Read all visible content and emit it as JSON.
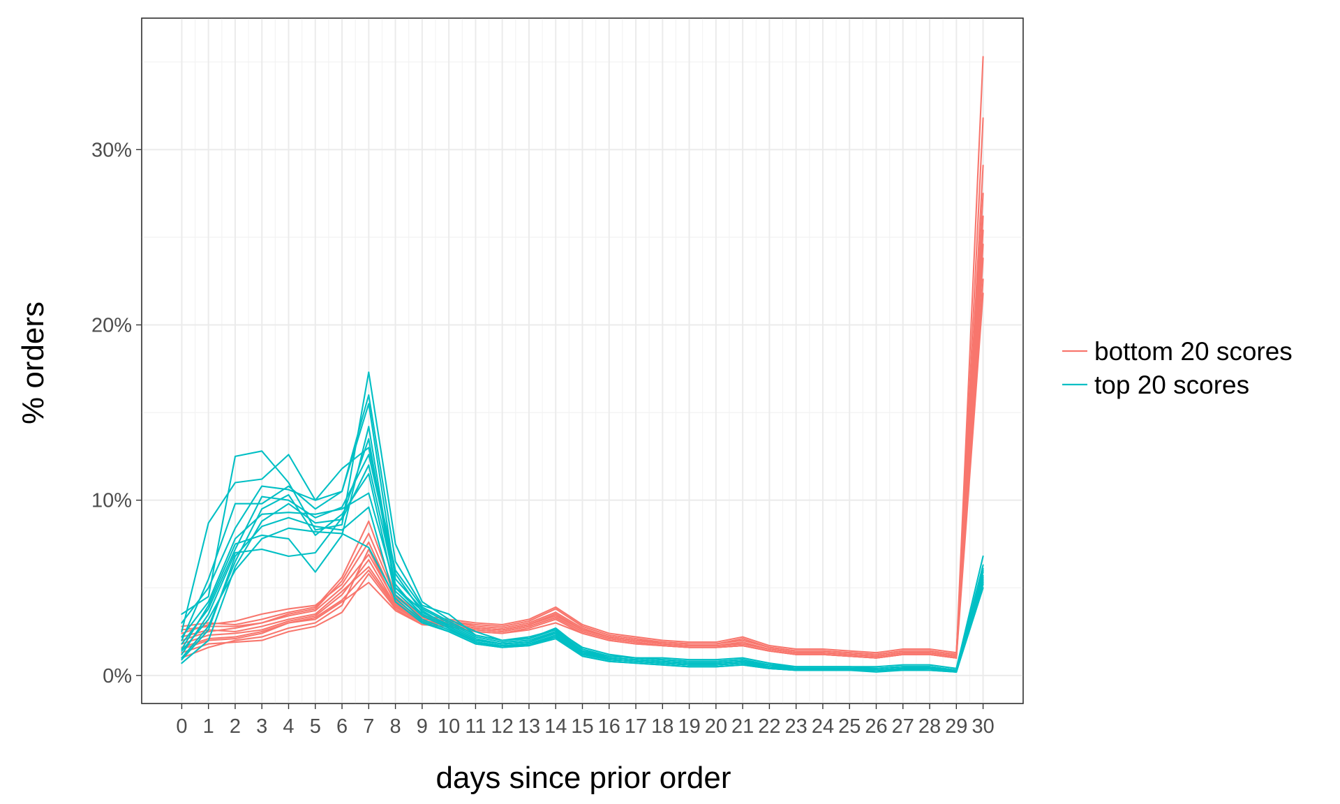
{
  "chart_data": {
    "type": "line",
    "title": "",
    "xlabel": "days since prior order",
    "ylabel": "% orders",
    "x": [
      0,
      1,
      2,
      3,
      4,
      5,
      6,
      7,
      8,
      9,
      10,
      11,
      12,
      13,
      14,
      15,
      16,
      17,
      18,
      19,
      20,
      21,
      22,
      23,
      24,
      25,
      26,
      27,
      28,
      29,
      30
    ],
    "x_tick_labels": [
      "0",
      "1",
      "2",
      "3",
      "4",
      "5",
      "6",
      "7",
      "8",
      "9",
      "10",
      "11",
      "12",
      "13",
      "14",
      "15",
      "16",
      "17",
      "18",
      "19",
      "20",
      "21",
      "22",
      "23",
      "24",
      "25",
      "26",
      "27",
      "28",
      "29",
      "30"
    ],
    "xlim": [
      -1.5,
      31.5
    ],
    "ylim": [
      -1.6,
      37.5
    ],
    "y_ticks": [
      0,
      10,
      20,
      30
    ],
    "y_tick_labels": [
      "0%",
      "10%",
      "20%",
      "30%"
    ],
    "grid": true,
    "legend_position": "right",
    "groups": [
      {
        "name": "bottom 20 scores",
        "color": "#F8766D",
        "series": [
          {
            "values": [
              2.2,
              2.6,
              2.5,
              2.8,
              3.2,
              3.5,
              4.8,
              6.2,
              4.0,
              3.0,
              3.0,
              2.7,
              2.6,
              2.9,
              3.4,
              2.6,
              2.2,
              2.0,
              1.8,
              1.7,
              1.7,
              1.8,
              1.5,
              1.3,
              1.3,
              1.2,
              1.1,
              1.3,
              1.3,
              1.1,
              35.3
            ]
          },
          {
            "values": [
              1.5,
              2.0,
              2.1,
              2.4,
              3.0,
              3.2,
              4.2,
              5.3,
              3.7,
              2.9,
              2.8,
              2.5,
              2.4,
              2.6,
              3.0,
              2.4,
              2.0,
              1.8,
              1.7,
              1.6,
              1.6,
              1.7,
              1.4,
              1.2,
              1.2,
              1.1,
              1.0,
              1.2,
              1.2,
              1.0,
              31.8
            ]
          },
          {
            "values": [
              2.8,
              3.0,
              2.9,
              3.2,
              3.6,
              3.9,
              5.6,
              8.8,
              4.6,
              3.4,
              3.2,
              3.0,
              2.9,
              3.2,
              3.9,
              2.9,
              2.4,
              2.2,
              2.0,
              1.9,
              1.9,
              2.2,
              1.7,
              1.5,
              1.5,
              1.4,
              1.3,
              1.5,
              1.5,
              1.3,
              27.5
            ]
          },
          {
            "values": [
              1.0,
              1.6,
              2.0,
              2.2,
              2.7,
              3.0,
              4.0,
              7.2,
              4.1,
              3.0,
              2.9,
              2.6,
              2.5,
              2.8,
              3.3,
              2.5,
              2.1,
              1.9,
              1.7,
              1.6,
              1.6,
              1.7,
              1.4,
              1.2,
              1.2,
              1.1,
              1.0,
              1.2,
              1.2,
              1.0,
              25.4
            ]
          },
          {
            "values": [
              2.4,
              2.9,
              3.1,
              3.5,
              3.8,
              4.0,
              5.2,
              7.6,
              4.3,
              3.2,
              3.1,
              2.8,
              2.7,
              3.0,
              3.6,
              2.7,
              2.2,
              2.0,
              1.9,
              1.8,
              1.8,
              2.0,
              1.6,
              1.4,
              1.4,
              1.3,
              1.2,
              1.4,
              1.4,
              1.2,
              23.8
            ]
          },
          {
            "values": [
              1.8,
              2.3,
              2.4,
              2.6,
              3.1,
              3.4,
              4.6,
              6.6,
              4.0,
              3.1,
              3.0,
              2.7,
              2.6,
              2.9,
              3.5,
              2.6,
              2.2,
              2.0,
              1.8,
              1.7,
              1.7,
              1.8,
              1.5,
              1.3,
              1.3,
              1.2,
              1.1,
              1.3,
              1.3,
              1.1,
              22.6
            ]
          },
          {
            "values": [
              1.3,
              1.8,
              1.9,
              2.0,
              2.5,
              2.8,
              3.6,
              5.8,
              3.8,
              2.9,
              2.8,
              2.5,
              2.4,
              2.7,
              3.2,
              2.4,
              2.0,
              1.8,
              1.7,
              1.6,
              1.6,
              1.7,
              1.4,
              1.2,
              1.2,
              1.1,
              1.0,
              1.2,
              1.2,
              1.0,
              21.8
            ]
          },
          {
            "values": [
              2.0,
              2.5,
              2.7,
              3.0,
              3.4,
              3.7,
              5.0,
              6.9,
              4.2,
              3.1,
              3.0,
              2.7,
              2.6,
              2.9,
              3.5,
              2.6,
              2.2,
              2.0,
              1.8,
              1.7,
              1.7,
              1.9,
              1.5,
              1.3,
              1.3,
              1.2,
              1.1,
              1.3,
              1.3,
              1.1,
              24.6
            ]
          },
          {
            "values": [
              1.6,
              2.1,
              2.2,
              2.5,
              3.0,
              3.3,
              4.3,
              6.0,
              3.9,
              3.0,
              2.9,
              2.6,
              2.5,
              2.8,
              3.3,
              2.5,
              2.1,
              1.9,
              1.7,
              1.6,
              1.6,
              1.7,
              1.4,
              1.2,
              1.2,
              1.1,
              1.0,
              1.2,
              1.2,
              1.0,
              26.2
            ]
          },
          {
            "values": [
              2.6,
              2.8,
              2.8,
              3.0,
              3.5,
              3.8,
              5.4,
              8.1,
              4.5,
              3.3,
              3.1,
              2.9,
              2.8,
              3.1,
              3.8,
              2.8,
              2.3,
              2.1,
              1.9,
              1.8,
              1.8,
              2.1,
              1.6,
              1.4,
              1.4,
              1.3,
              1.2,
              1.4,
              1.4,
              1.2,
              29.1
            ]
          }
        ]
      },
      {
        "name": "top 20 scores",
        "color": "#00BFC4",
        "series": [
          {
            "values": [
              3.5,
              4.5,
              12.5,
              12.8,
              11.0,
              8.3,
              8.6,
              17.3,
              7.5,
              4.2,
              3.2,
              2.5,
              2.0,
              2.2,
              2.6,
              1.6,
              1.2,
              1.0,
              1.0,
              0.9,
              0.9,
              1.0,
              0.7,
              0.5,
              0.5,
              0.5,
              0.5,
              0.6,
              0.6,
              0.4,
              6.8
            ]
          },
          {
            "values": [
              2.5,
              8.7,
              11.0,
              11.2,
              12.6,
              10.0,
              10.5,
              16.0,
              6.5,
              4.0,
              3.5,
              2.3,
              2.0,
              2.1,
              2.7,
              1.5,
              1.1,
              1.0,
              0.9,
              0.8,
              0.8,
              0.9,
              0.6,
              0.5,
              0.5,
              0.5,
              0.4,
              0.5,
              0.5,
              0.3,
              6.3
            ]
          },
          {
            "values": [
              2.0,
              5.5,
              9.8,
              9.8,
              10.8,
              9.5,
              10.5,
              15.5,
              5.5,
              3.8,
              3.0,
              2.2,
              1.9,
              2.0,
              2.5,
              1.4,
              1.0,
              0.9,
              0.8,
              0.7,
              0.7,
              0.8,
              0.6,
              0.4,
              0.4,
              0.4,
              0.4,
              0.5,
              0.5,
              0.3,
              6.0
            ]
          },
          {
            "values": [
              1.5,
              4.0,
              7.5,
              8.0,
              7.8,
              5.9,
              8.0,
              14.2,
              5.0,
              3.5,
              2.8,
              2.0,
              1.8,
              1.9,
              2.4,
              1.3,
              0.9,
              0.8,
              0.7,
              0.6,
              0.6,
              0.7,
              0.5,
              0.3,
              0.3,
              0.3,
              0.3,
              0.4,
              0.4,
              0.2,
              5.6
            ]
          },
          {
            "values": [
              1.2,
              3.5,
              7.0,
              7.2,
              6.8,
              7.0,
              9.0,
              13.5,
              4.8,
              3.4,
              2.7,
              1.9,
              1.7,
              1.8,
              2.3,
              1.2,
              0.9,
              0.8,
              0.7,
              0.6,
              0.6,
              0.7,
              0.5,
              0.3,
              0.3,
              0.3,
              0.3,
              0.4,
              0.4,
              0.2,
              5.4
            ]
          },
          {
            "values": [
              0.9,
              2.6,
              6.8,
              8.5,
              9.0,
              8.5,
              8.3,
              9.6,
              4.2,
              3.0,
              2.5,
              1.8,
              1.6,
              1.7,
              2.2,
              1.1,
              0.8,
              0.7,
              0.6,
              0.5,
              0.5,
              0.6,
              0.4,
              0.3,
              0.3,
              0.3,
              0.2,
              0.3,
              0.3,
              0.2,
              5.2
            ]
          },
          {
            "values": [
              1.8,
              3.8,
              7.2,
              10.2,
              10.0,
              9.0,
              9.6,
              12.6,
              5.8,
              3.6,
              2.9,
              2.1,
              1.8,
              1.9,
              2.4,
              1.3,
              1.0,
              0.9,
              0.8,
              0.7,
              0.7,
              0.8,
              0.5,
              0.4,
              0.4,
              0.4,
              0.3,
              0.4,
              0.4,
              0.3,
              5.7
            ]
          },
          {
            "values": [
              0.7,
              2.0,
              6.2,
              8.8,
              9.8,
              8.7,
              8.9,
              12.0,
              5.2,
              3.4,
              2.7,
              1.9,
              1.7,
              1.8,
              2.3,
              1.2,
              0.9,
              0.8,
              0.7,
              0.6,
              0.6,
              0.7,
              0.5,
              0.3,
              0.3,
              0.3,
              0.3,
              0.4,
              0.4,
              0.2,
              5.5
            ]
          },
          {
            "values": [
              2.2,
              4.2,
              7.8,
              9.2,
              9.3,
              9.2,
              9.5,
              10.4,
              5.0,
              3.7,
              2.8,
              2.0,
              1.8,
              1.9,
              2.5,
              1.3,
              1.0,
              0.9,
              0.8,
              0.7,
              0.7,
              0.8,
              0.5,
              0.4,
              0.4,
              0.4,
              0.3,
              0.4,
              0.4,
              0.3,
              5.9
            ]
          },
          {
            "values": [
              1.0,
              2.8,
              6.5,
              9.5,
              10.3,
              8.0,
              9.2,
              11.5,
              4.6,
              3.2,
              2.6,
              1.9,
              1.6,
              1.8,
              2.2,
              1.2,
              0.9,
              0.8,
              0.7,
              0.6,
              0.6,
              0.7,
              0.4,
              0.3,
              0.3,
              0.3,
              0.3,
              0.3,
              0.4,
              0.2,
              5.3
            ]
          },
          {
            "values": [
              3.0,
              5.0,
              8.4,
              10.8,
              10.6,
              10.0,
              11.8,
              13.0,
              6.0,
              3.9,
              3.1,
              2.3,
              2.0,
              2.1,
              2.6,
              1.4,
              1.1,
              1.0,
              0.9,
              0.8,
              0.8,
              0.9,
              0.6,
              0.4,
              0.4,
              0.4,
              0.4,
              0.5,
              0.5,
              0.3,
              6.1
            ]
          },
          {
            "values": [
              1.4,
              3.2,
              6.0,
              7.8,
              8.4,
              8.2,
              8.1,
              7.3,
              4.4,
              3.1,
              2.5,
              1.8,
              1.6,
              1.7,
              2.1,
              1.1,
              0.8,
              0.7,
              0.6,
              0.5,
              0.5,
              0.6,
              0.4,
              0.3,
              0.3,
              0.3,
              0.3,
              0.3,
              0.3,
              0.2,
              5.0
            ]
          }
        ]
      }
    ]
  }
}
